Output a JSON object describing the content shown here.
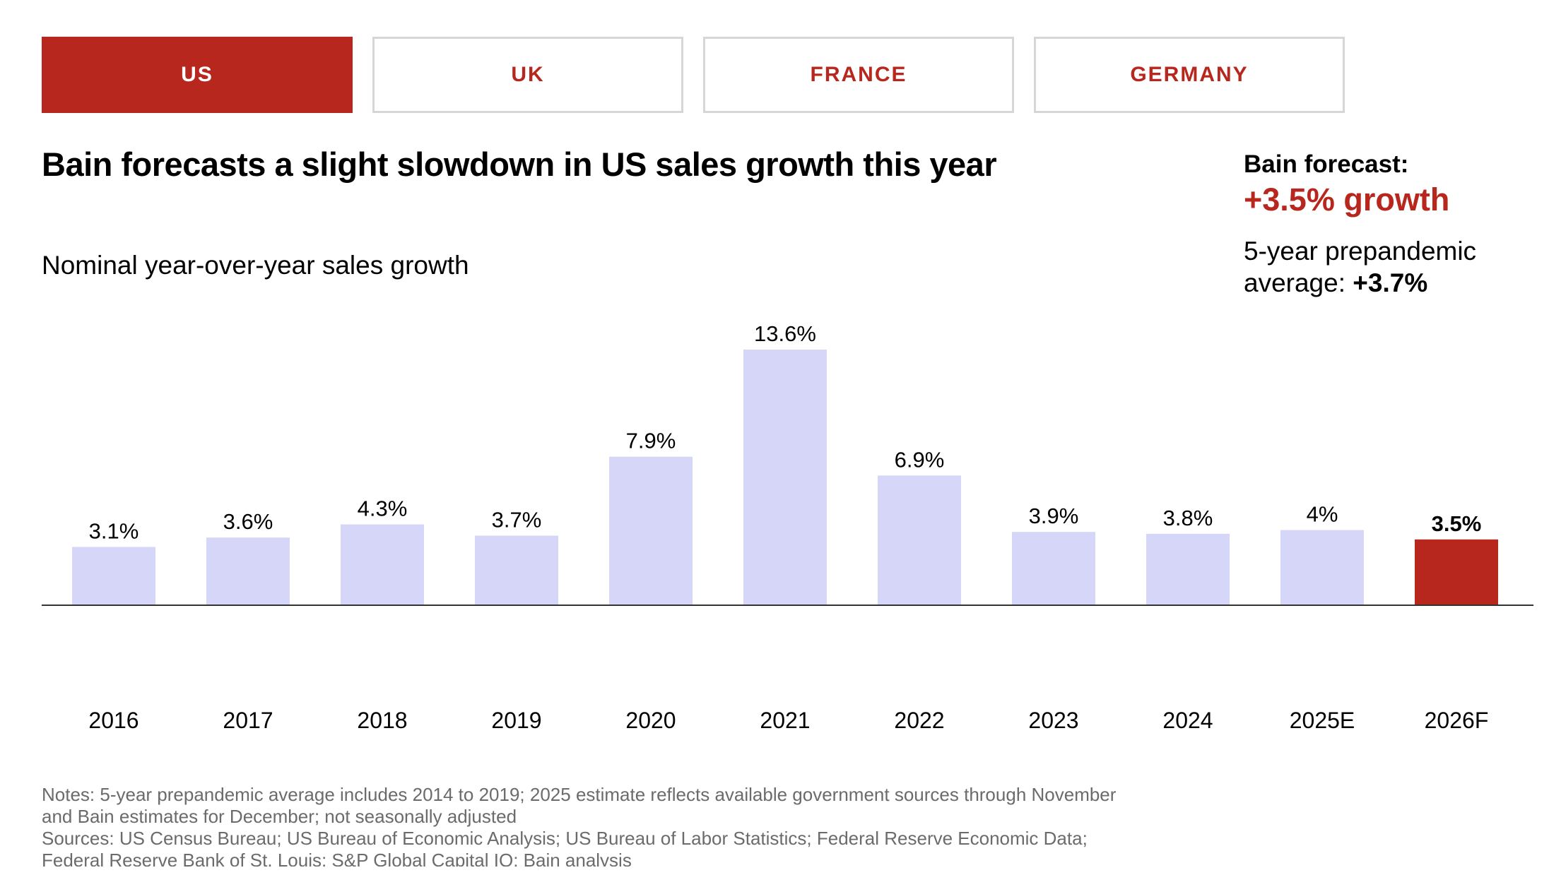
{
  "tabs": [
    {
      "label": "US",
      "active": true
    },
    {
      "label": "UK",
      "active": false
    },
    {
      "label": "FRANCE",
      "active": false
    },
    {
      "label": "GERMANY",
      "active": false
    }
  ],
  "title": "Bain forecasts a slight slowdown in US sales growth this year",
  "forecast": {
    "label": "Bain forecast:",
    "value": "+3.5% growth",
    "prepandemic_text": "5-year prepandemic average:",
    "prepandemic_value": "+3.7%"
  },
  "subtitle": "Nominal year-over-year sales growth",
  "colors": {
    "accent": "#b8271e",
    "bar": "#d6d6f8",
    "axis": "#333333"
  },
  "chart_data": {
    "type": "bar",
    "title": "Bain forecasts a slight slowdown in US sales growth this year",
    "ylabel": "Nominal year-over-year sales growth",
    "xlabel": "",
    "ylim": [
      0,
      13.6
    ],
    "categories": [
      "2016",
      "2017",
      "2018",
      "2019",
      "2020",
      "2021",
      "2022",
      "2023",
      "2024",
      "2025E",
      "2026F"
    ],
    "values": [
      3.1,
      3.6,
      4.3,
      3.7,
      7.9,
      13.6,
      6.9,
      3.9,
      3.8,
      4.0,
      3.5
    ],
    "labels": [
      "3.1%",
      "3.6%",
      "4.3%",
      "3.7%",
      "7.9%",
      "13.6%",
      "6.9%",
      "3.9%",
      "3.8%",
      "4%",
      "3.5%"
    ],
    "highlight_category": "2026F",
    "grid": false,
    "legend": "none"
  },
  "notes": {
    "line1": "Notes: 5-year prepandemic average includes 2014 to 2019; 2025 estimate reflects available government sources through November",
    "line2": "and Bain estimates for December; not seasonally adjusted",
    "line3": "Sources: US Census Bureau; US Bureau of Economic Analysis; US Bureau of Labor Statistics; Federal Reserve Economic Data;",
    "line4": "Federal Reserve Bank of St. Louis; S&P Global Capital IQ; Bain analysis"
  }
}
